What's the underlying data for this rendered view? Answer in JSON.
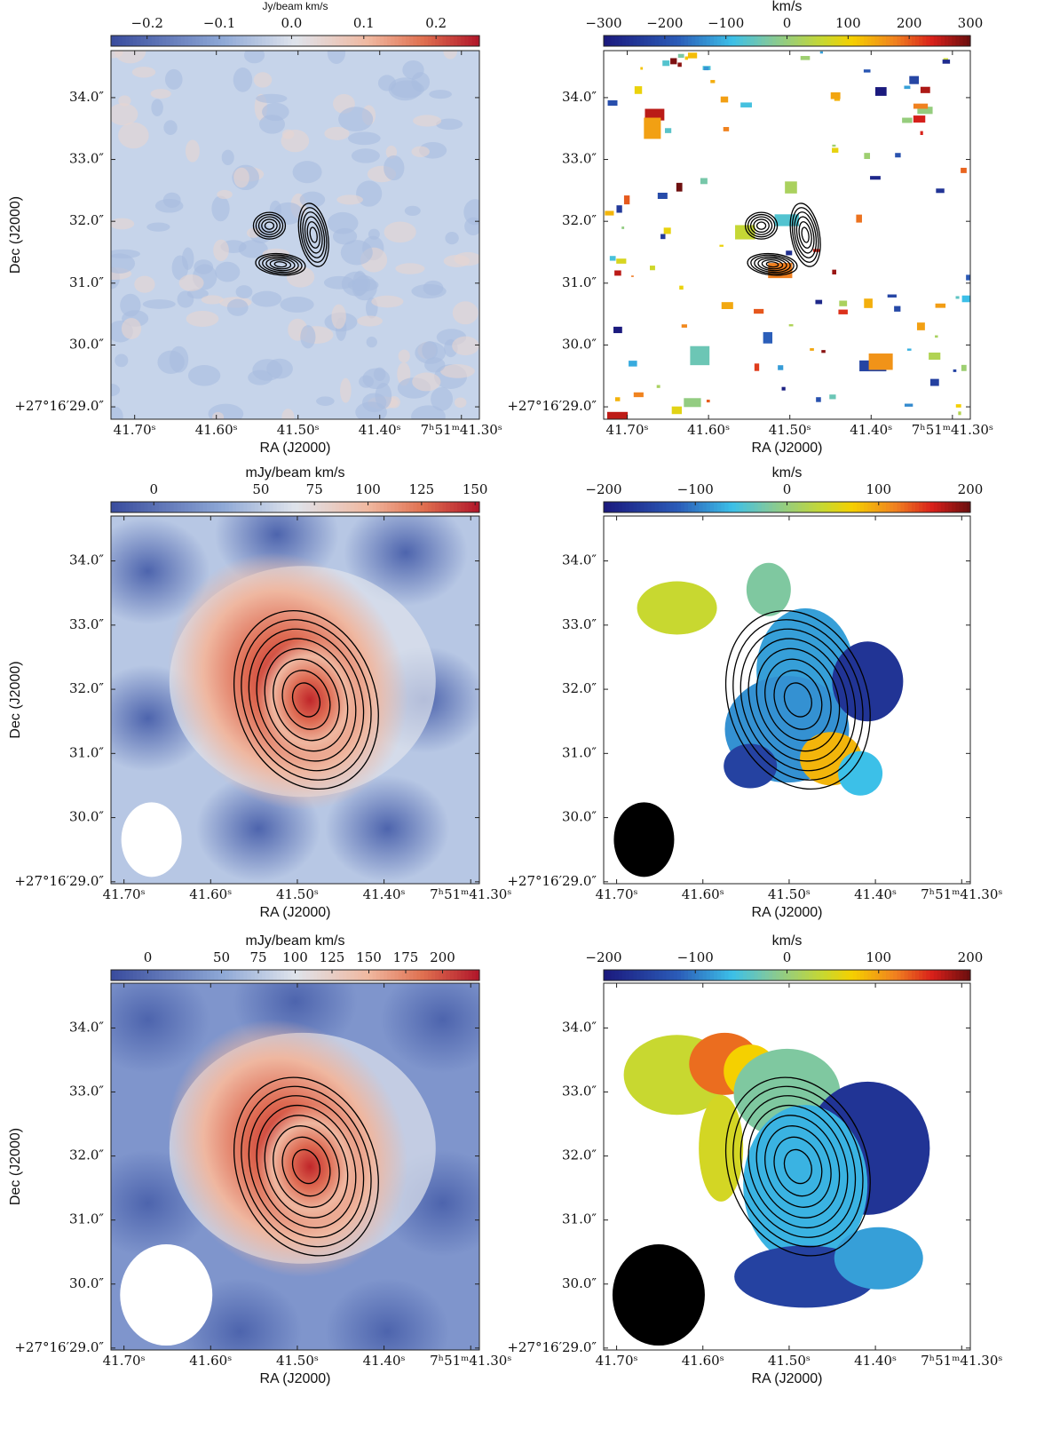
{
  "chart_data": [
    {
      "type": "image",
      "colorbar_label": "Jy/beam km/s",
      "colormap": "RdBu_r",
      "colorbar_lim": [
        -0.25,
        0.26
      ],
      "colorbar_ticks": [
        {
          "value": -0.2,
          "label": "−0.2"
        },
        {
          "value": -0.1,
          "label": "−0.1"
        },
        {
          "value": 0,
          "label": "0.0"
        },
        0.1,
        0.2
      ],
      "xlabel": "RA (J2000)",
      "ylabel": "Dec (J2000)",
      "xlim": [
        41.729,
        41.278
      ],
      "ylim": [
        28.8,
        34.76
      ],
      "xticks": [
        {
          "value": 41.7,
          "label": "41.70ˢ"
        },
        {
          "value": 41.6,
          "label": "41.60ˢ"
        },
        {
          "value": 41.5,
          "label": "41.50ˢ"
        },
        {
          "value": 41.4,
          "label": "41.40ˢ"
        },
        {
          "value": 41.3,
          "label": "7ʰ51ᵐ41.30ˢ"
        }
      ],
      "yticks": [
        {
          "value": 34,
          "label": "34.0″"
        },
        {
          "value": 33,
          "label": "33.0″"
        },
        {
          "value": 32,
          "label": "32.0″"
        },
        {
          "value": 31,
          "label": "31.0″"
        },
        {
          "value": 30,
          "label": "30.0″"
        },
        {
          "value": 29,
          "label": "+27°16′29.0″"
        }
      ]
    },
    {
      "type": "image",
      "colorbar_label": "km/s",
      "colormap": "jet",
      "colorbar_lim": [
        -300,
        300
      ],
      "colorbar_ticks": [
        {
          "value": -300,
          "label": "−300"
        },
        {
          "value": -200,
          "label": "−200"
        },
        {
          "value": -100,
          "label": "−100"
        },
        0,
        100,
        200,
        300
      ],
      "xlabel": "RA (J2000)",
      "xlim": [
        41.729,
        41.278
      ],
      "ylim": [
        28.8,
        34.76
      ],
      "xticks": [
        {
          "value": 41.7,
          "label": "41.70ˢ"
        },
        {
          "value": 41.6,
          "label": "41.60ˢ"
        },
        {
          "value": 41.5,
          "label": "41.50ˢ"
        },
        {
          "value": 41.4,
          "label": "41.40ˢ"
        },
        {
          "value": 41.3,
          "label": "7ʰ51ᵐ41.30ˢ"
        }
      ],
      "yticks": [
        {
          "value": 34,
          "label": "34.0″"
        },
        {
          "value": 33,
          "label": "33.0″"
        },
        {
          "value": 32,
          "label": "32.0″"
        },
        {
          "value": 31,
          "label": "31.0″"
        },
        {
          "value": 30,
          "label": "30.0″"
        },
        {
          "value": 29,
          "label": "+27°16′29.0″"
        }
      ]
    },
    {
      "type": "image",
      "colorbar_label": "mJy/beam km/s",
      "colormap": "RdBu_r",
      "colorbar_lim": [
        -20,
        152
      ],
      "colorbar_ticks": [
        0,
        50,
        75,
        100,
        125,
        150
      ],
      "xlabel": "RA (J2000)",
      "ylabel": "Dec (J2000)",
      "xlim": [
        41.715,
        41.29
      ],
      "ylim": [
        28.97,
        34.7
      ],
      "xticks": [
        {
          "value": 41.7,
          "label": "41.70ˢ"
        },
        {
          "value": 41.6,
          "label": "41.60ˢ"
        },
        {
          "value": 41.5,
          "label": "41.50ˢ"
        },
        {
          "value": 41.4,
          "label": "41.40ˢ"
        },
        {
          "value": 41.3,
          "label": "7ʰ51ᵐ41.30ˢ"
        }
      ],
      "yticks": [
        {
          "value": 34,
          "label": "34.0″"
        },
        {
          "value": 33,
          "label": "33.0″"
        },
        {
          "value": 32,
          "label": "32.0″"
        },
        {
          "value": 31,
          "label": "31.0″"
        },
        {
          "value": 30,
          "label": "30.0″"
        },
        {
          "value": 29,
          "label": "+27°16′29.0″"
        }
      ]
    },
    {
      "type": "image",
      "colorbar_label": "km/s",
      "colormap": "jet",
      "colorbar_lim": [
        -200,
        200
      ],
      "colorbar_ticks": [
        {
          "value": -200,
          "label": "−200"
        },
        {
          "value": -100,
          "label": "−100"
        },
        0,
        100,
        200
      ],
      "xlabel": "RA (J2000)",
      "xlim": [
        41.715,
        41.29
      ],
      "ylim": [
        28.97,
        34.7
      ],
      "xticks": [
        {
          "value": 41.7,
          "label": "41.70ˢ"
        },
        {
          "value": 41.6,
          "label": "41.60ˢ"
        },
        {
          "value": 41.5,
          "label": "41.50ˢ"
        },
        {
          "value": 41.4,
          "label": "41.40ˢ"
        },
        {
          "value": 41.3,
          "label": "7ʰ51ᵐ41.30ˢ"
        }
      ],
      "yticks": [
        {
          "value": 34,
          "label": "34.0″"
        },
        {
          "value": 33,
          "label": "33.0″"
        },
        {
          "value": 32,
          "label": "32.0″"
        },
        {
          "value": 31,
          "label": "31.0″"
        },
        {
          "value": 30,
          "label": "30.0″"
        },
        {
          "value": 29,
          "label": "+27°16′29.0″"
        }
      ]
    },
    {
      "type": "image",
      "colorbar_label": "mJy/beam km/s",
      "colormap": "RdBu_r",
      "colorbar_lim": [
        -25,
        225
      ],
      "colorbar_ticks": [
        0,
        50,
        75,
        100,
        125,
        150,
        175,
        200
      ],
      "xlabel": "RA (J2000)",
      "ylabel": "Dec (J2000)",
      "xlim": [
        41.715,
        41.29
      ],
      "ylim": [
        28.97,
        34.7
      ],
      "xticks": [
        {
          "value": 41.7,
          "label": "41.70ˢ"
        },
        {
          "value": 41.6,
          "label": "41.60ˢ"
        },
        {
          "value": 41.5,
          "label": "41.50ˢ"
        },
        {
          "value": 41.4,
          "label": "41.40ˢ"
        },
        {
          "value": 41.3,
          "label": "7ʰ51ᵐ41.30ˢ"
        }
      ],
      "yticks": [
        {
          "value": 34,
          "label": "34.0″"
        },
        {
          "value": 33,
          "label": "33.0″"
        },
        {
          "value": 32,
          "label": "32.0″"
        },
        {
          "value": 31,
          "label": "31.0″"
        },
        {
          "value": 30,
          "label": "30.0″"
        },
        {
          "value": 29,
          "label": "+27°16′29.0″"
        }
      ]
    },
    {
      "type": "image",
      "colorbar_label": "km/s",
      "colormap": "jet",
      "colorbar_lim": [
        -200,
        200
      ],
      "colorbar_ticks": [
        {
          "value": -200,
          "label": "−200"
        },
        {
          "value": -100,
          "label": "−100"
        },
        0,
        100,
        200
      ],
      "xlabel": "RA (J2000)",
      "xlim": [
        41.715,
        41.29
      ],
      "ylim": [
        28.97,
        34.7
      ],
      "xticks": [
        {
          "value": 41.7,
          "label": "41.70ˢ"
        },
        {
          "value": 41.6,
          "label": "41.60ˢ"
        },
        {
          "value": 41.5,
          "label": "41.50ˢ"
        },
        {
          "value": 41.4,
          "label": "41.40ˢ"
        },
        {
          "value": 41.3,
          "label": "7ʰ51ᵐ41.30ˢ"
        }
      ],
      "yticks": [
        {
          "value": 34,
          "label": "34.0″"
        },
        {
          "value": 33,
          "label": "33.0″"
        },
        {
          "value": 32,
          "label": "32.0″"
        },
        {
          "value": 31,
          "label": "31.0″"
        },
        {
          "value": 30,
          "label": "30.0″"
        },
        {
          "value": 29,
          "label": "+27°16′29.0″"
        }
      ]
    }
  ]
}
